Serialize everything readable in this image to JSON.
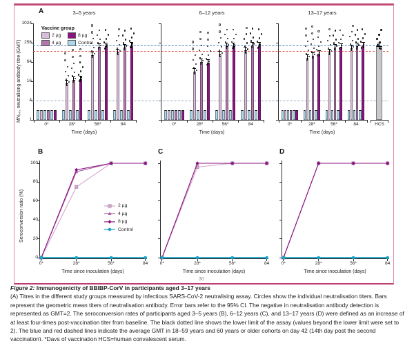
{
  "page": {
    "page_number": "30"
  },
  "panel_a": {
    "letter": "A",
    "ylabel": "MN₅₀, neutralising antibody titre (GMT)",
    "xlabel": "Time (days)",
    "legend": {
      "title": "Vaccine group",
      "items": [
        {
          "label": "2 µg",
          "color": "#d9bcd9"
        },
        {
          "label": "4 µg",
          "color": "#b277ae"
        },
        {
          "label": "8 µg",
          "color": "#8a1480"
        },
        {
          "label": "Control",
          "color": "#a9d9ea"
        }
      ]
    }
  },
  "panel_bcd": {
    "ylabel": "Seroconversion ratio (%)",
    "xlabel": "Time since inoculation (days)"
  },
  "colors": {
    "dose2_bar": "#d9bcd9",
    "dose4_bar": "#b277ae",
    "dose8_bar": "#8a1480",
    "control_bar": "#a9d9ea",
    "hcs_bar": "#c9c9cd",
    "dose2_line": "#d3a6ce",
    "dose4_line": "#a95fa3",
    "dose8_line": "#8a1480",
    "control_line": "#18a2c9",
    "blue_dashed": "#4d82c4",
    "red_dashed": "#e2544c",
    "lower_limit_dotted": "#7f99ad",
    "frame_pink": "#c14a77"
  },
  "line_styles": {
    "2 µg": {
      "color": "#d3a6ce",
      "marker": "square"
    },
    "4 µg": {
      "color": "#a95fa3",
      "marker": "triangle"
    },
    "8 µg": {
      "color": "#8a1480",
      "marker": "diamond"
    },
    "Control": {
      "color": "#18a2c9",
      "marker": "circle"
    }
  },
  "chart_data": [
    {
      "type": "bar",
      "panel": "A",
      "title": "3–5 years",
      "ylabel": "MN₅₀, neutralising antibody titre (GMT)",
      "xlabel": "Time (days)",
      "log_scale": true,
      "ylim": [
        1,
        1024
      ],
      "yticks": [
        1,
        4,
        16,
        64,
        256,
        1024
      ],
      "categories": [
        "0*",
        "28*",
        "56*",
        "84"
      ],
      "bar_order": [
        "Control",
        "2 µg",
        "Control",
        "4 µg",
        "Control",
        "8 µg"
      ],
      "series": [
        {
          "name": "2 µg",
          "values": [
            2,
            14,
            105,
            130
          ]
        },
        {
          "name": "4 µg",
          "values": [
            2,
            18,
            190,
            185
          ]
        },
        {
          "name": "8 µg",
          "values": [
            2,
            19,
            195,
            215
          ]
        },
        {
          "name": "Control",
          "values": [
            2,
            2,
            2,
            2
          ]
        }
      ],
      "ref_lines": [
        {
          "value": 205,
          "style": "dashed",
          "color_key": "blue_dashed",
          "meaning": "average GMT in 18–59 years cohort on day 42"
        },
        {
          "value": 140,
          "style": "dashed",
          "color_key": "red_dashed",
          "meaning": "average GMT in 60 years or older cohort on day 42"
        },
        {
          "value": 4,
          "style": "dotted",
          "color_key": "lower_limit_dotted",
          "meaning": "lower limit of the assay"
        }
      ]
    },
    {
      "type": "bar",
      "panel": "A",
      "title": "6–12 years",
      "ylabel": "MN₅₀, neutralising antibody titre (GMT)",
      "xlabel": "Time (days)",
      "log_scale": true,
      "ylim": [
        1,
        1024
      ],
      "yticks": [
        1,
        4,
        16,
        64,
        256,
        1024
      ],
      "categories": [
        "0*",
        "28*",
        "56*",
        "84"
      ],
      "bar_order": [
        "Control",
        "2 µg",
        "Control",
        "4 µg",
        "Control",
        "8 µg"
      ],
      "series": [
        {
          "name": "2 µg",
          "values": [
            2,
            32,
            110,
            145
          ]
        },
        {
          "name": "4 µg",
          "values": [
            2,
            65,
            200,
            215
          ]
        },
        {
          "name": "8 µg",
          "values": [
            2,
            62,
            200,
            205
          ]
        },
        {
          "name": "Control",
          "values": [
            2,
            2,
            2,
            2
          ]
        }
      ]
    },
    {
      "type": "bar",
      "panel": "A",
      "title": "13–17 years",
      "ylabel": "MN₅₀, neutralising antibody titre (GMT)",
      "xlabel": "Time (days)",
      "log_scale": true,
      "ylim": [
        1,
        1024
      ],
      "yticks": [
        1,
        4,
        16,
        64,
        256,
        1024
      ],
      "categories": [
        "0*",
        "28*",
        "56*",
        "84"
      ],
      "bar_order": [
        "Control",
        "2 µg",
        "Control",
        "4 µg",
        "Control",
        "8 µg"
      ],
      "series": [
        {
          "name": "2 µg",
          "values": [
            2,
            85,
            130,
            170
          ]
        },
        {
          "name": "4 µg",
          "values": [
            2,
            98,
            185,
            195
          ]
        },
        {
          "name": "8 µg",
          "values": [
            2,
            115,
            190,
            205
          ]
        },
        {
          "name": "Control",
          "values": [
            2,
            2,
            2,
            2
          ]
        }
      ],
      "extra": {
        "name": "HCS",
        "value": 195
      }
    },
    {
      "type": "line",
      "panel": "B",
      "ylabel": "Seroconversion ratio (%)",
      "xlabel": "Time since inoculation (days)",
      "ylim": [
        0,
        100
      ],
      "yticks": [
        0,
        20,
        40,
        60,
        80,
        100
      ],
      "categories": [
        "0*",
        "28*",
        "56*",
        "84"
      ],
      "legend_position": "right-middle",
      "series": [
        {
          "name": "2 µg",
          "values": [
            0,
            75,
            100,
            100
          ]
        },
        {
          "name": "4 µg",
          "values": [
            0,
            91,
            100,
            100
          ]
        },
        {
          "name": "8 µg",
          "values": [
            0,
            93,
            100,
            100
          ]
        },
        {
          "name": "Control",
          "values": [
            0,
            0,
            0,
            0
          ]
        }
      ]
    },
    {
      "type": "line",
      "panel": "C",
      "ylabel": "Seroconversion ratio (%)",
      "xlabel": "Time since inoculation (days)",
      "ylim": [
        0,
        100
      ],
      "yticks": [
        0,
        20,
        40,
        60,
        80,
        100
      ],
      "categories": [
        "0*",
        "28*",
        "56*",
        "84"
      ],
      "series": [
        {
          "name": "2 µg",
          "values": [
            0,
            96,
            100,
            100
          ]
        },
        {
          "name": "4 µg",
          "values": [
            0,
            100,
            100,
            100
          ]
        },
        {
          "name": "8 µg",
          "values": [
            0,
            100,
            100,
            100
          ]
        },
        {
          "name": "Control",
          "values": [
            0,
            0,
            0,
            0
          ]
        }
      ]
    },
    {
      "type": "line",
      "panel": "D",
      "ylabel": "Seroconversion ratio (%)",
      "xlabel": "Time since inoculation (days)",
      "ylim": [
        0,
        100
      ],
      "yticks": [
        0,
        20,
        40,
        60,
        80,
        100
      ],
      "categories": [
        "0*",
        "28*",
        "56*",
        "84"
      ],
      "series": [
        {
          "name": "2 µg",
          "values": [
            0,
            100,
            100,
            100
          ]
        },
        {
          "name": "4 µg",
          "values": [
            0,
            100,
            100,
            100
          ]
        },
        {
          "name": "8 µg",
          "values": [
            0,
            100,
            100,
            100
          ]
        },
        {
          "name": "Control",
          "values": [
            0,
            0,
            0,
            0
          ]
        }
      ]
    }
  ],
  "caption": {
    "figure_label": "Figure 2:",
    "title": " Immunogenicity of BBIBP-CorV in participants aged 3–17 years",
    "body": "(A) Titres in the different study groups measured by infectious SARS-CoV-2 neutralising assay. Circles show the individual neutralisation titers. Bars represent the geometric mean titers of neutralisation antibody. Error bars refer to the 95% CI. The negative in neutralisation antibody detection is represented as GMT=2. The seroconversion rates of participants aged 3–5 years (B), 6–12 years (C), and 13–17 years (D) were defined as an increase of at least four-times post-vaccination titer from baseline. The black dotted line shows the lower limit of the assay (values beyond the lower limit were set to 2). The blue and red dashed lines indicate the average GMT in 18–59 years and 60 years or older cohorts on day 42 (14th day post the second vaccination). *Days of vaccination HCS=human convalescent serum."
  }
}
